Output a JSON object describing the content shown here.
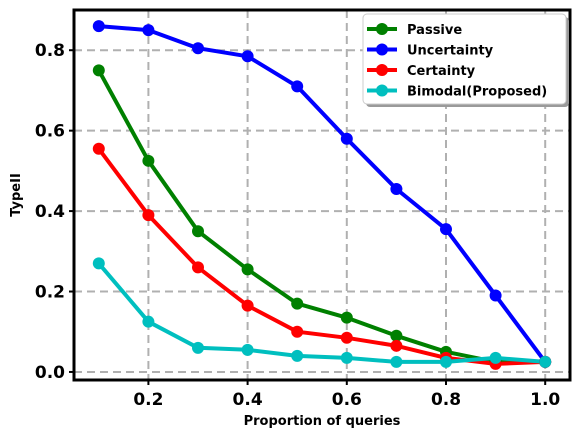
{
  "chart_data": {
    "type": "line",
    "title": "",
    "xlabel": "Proportion of queries",
    "ylabel": "TypeII",
    "xlim": [
      0.05,
      1.05
    ],
    "ylim": [
      -0.02,
      0.9
    ],
    "xticks": [
      0.2,
      0.4,
      0.6,
      0.8,
      1.0
    ],
    "xtick_labels": [
      "0.2",
      "0.4",
      "0.6",
      "0.8",
      "1.0"
    ],
    "yticks": [
      0.0,
      0.2,
      0.4,
      0.6,
      0.8
    ],
    "ytick_labels": [
      "0.0",
      "0.2",
      "0.4",
      "0.6",
      "0.8"
    ],
    "grid": true,
    "legend_position": "top-right",
    "x": [
      0.1,
      0.2,
      0.3,
      0.4,
      0.5,
      0.6,
      0.7,
      0.8,
      0.9,
      1.0
    ],
    "series": [
      {
        "name": "Passive",
        "color": "#008000",
        "values": [
          0.75,
          0.525,
          0.35,
          0.255,
          0.17,
          0.135,
          0.09,
          0.05,
          0.025,
          0.025
        ]
      },
      {
        "name": "Uncertainty",
        "color": "#0000ff",
        "values": [
          0.86,
          0.85,
          0.805,
          0.785,
          0.71,
          0.58,
          0.455,
          0.355,
          0.19,
          0.025
        ]
      },
      {
        "name": "Certainty",
        "color": "#ff0000",
        "values": [
          0.555,
          0.39,
          0.26,
          0.165,
          0.1,
          0.085,
          0.065,
          0.035,
          0.02,
          0.025
        ]
      },
      {
        "name": "Bimodal(Proposed)",
        "color": "#00bfbf",
        "values": [
          0.27,
          0.125,
          0.06,
          0.055,
          0.04,
          0.035,
          0.025,
          0.025,
          0.035,
          0.025
        ]
      }
    ]
  }
}
